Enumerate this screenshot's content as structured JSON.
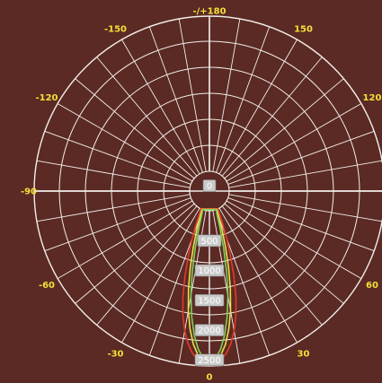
{
  "chart_data": {
    "type": "polar",
    "title": "",
    "angle_ticks": [
      {
        "angle": 180,
        "label": "-/+180"
      },
      {
        "angle": 150,
        "label": "150"
      },
      {
        "angle": -150,
        "label": "-150"
      },
      {
        "angle": 120,
        "label": "120"
      },
      {
        "angle": -120,
        "label": "-120"
      },
      {
        "angle": -90,
        "label": "-90"
      },
      {
        "angle": 60,
        "label": "60"
      },
      {
        "angle": -60,
        "label": "-60"
      },
      {
        "angle": 30,
        "label": "30"
      },
      {
        "angle": -30,
        "label": "-30"
      },
      {
        "angle": 0,
        "label": "0"
      }
    ],
    "radial_ticks": [
      0,
      500,
      1000,
      1500,
      2000,
      2500
    ],
    "radial_range": [
      0,
      2600
    ],
    "angular_grid_step_deg": 10,
    "series": [
      {
        "color": "#e23b2c",
        "points": [
          {
            "angle": 0,
            "value": 2580
          },
          {
            "angle": 2,
            "value": 2560
          },
          {
            "angle": 4,
            "value": 2500
          },
          {
            "angle": 6,
            "value": 2400
          },
          {
            "angle": 8,
            "value": 2250
          },
          {
            "angle": 10,
            "value": 2050
          },
          {
            "angle": 12,
            "value": 1800
          },
          {
            "angle": 14,
            "value": 1500
          },
          {
            "angle": 16,
            "value": 1150
          },
          {
            "angle": 18,
            "value": 800
          },
          {
            "angle": 20,
            "value": 500
          },
          {
            "angle": 22,
            "value": 250
          },
          {
            "angle": 24,
            "value": 80
          },
          {
            "angle": 26,
            "value": 0
          }
        ]
      },
      {
        "color": "#e8e04a",
        "points": [
          {
            "angle": 0,
            "value": 2560
          },
          {
            "angle": 2,
            "value": 2520
          },
          {
            "angle": 4,
            "value": 2420
          },
          {
            "angle": 6,
            "value": 2250
          },
          {
            "angle": 8,
            "value": 2000
          },
          {
            "angle": 10,
            "value": 1700
          },
          {
            "angle": 12,
            "value": 1350
          },
          {
            "angle": 14,
            "value": 1000
          },
          {
            "angle": 16,
            "value": 650
          },
          {
            "angle": 18,
            "value": 350
          },
          {
            "angle": 20,
            "value": 120
          },
          {
            "angle": 22,
            "value": 0
          }
        ]
      },
      {
        "color": "#7fcf5a",
        "points": [
          {
            "angle": 0,
            "value": 2540
          },
          {
            "angle": 2,
            "value": 2480
          },
          {
            "angle": 4,
            "value": 2330
          },
          {
            "angle": 6,
            "value": 2100
          },
          {
            "angle": 8,
            "value": 1800
          },
          {
            "angle": 10,
            "value": 1450
          },
          {
            "angle": 12,
            "value": 1050
          },
          {
            "angle": 14,
            "value": 650
          },
          {
            "angle": 16,
            "value": 300
          },
          {
            "angle": 18,
            "value": 80
          },
          {
            "angle": 20,
            "value": 0
          }
        ]
      }
    ],
    "grid": true,
    "legend": "none"
  },
  "colors": {
    "background": "#5b2a24",
    "grid": "#f2eeea",
    "angle_labels": "#f2e03a",
    "ring_labels_bg": "#c9c9c9"
  }
}
